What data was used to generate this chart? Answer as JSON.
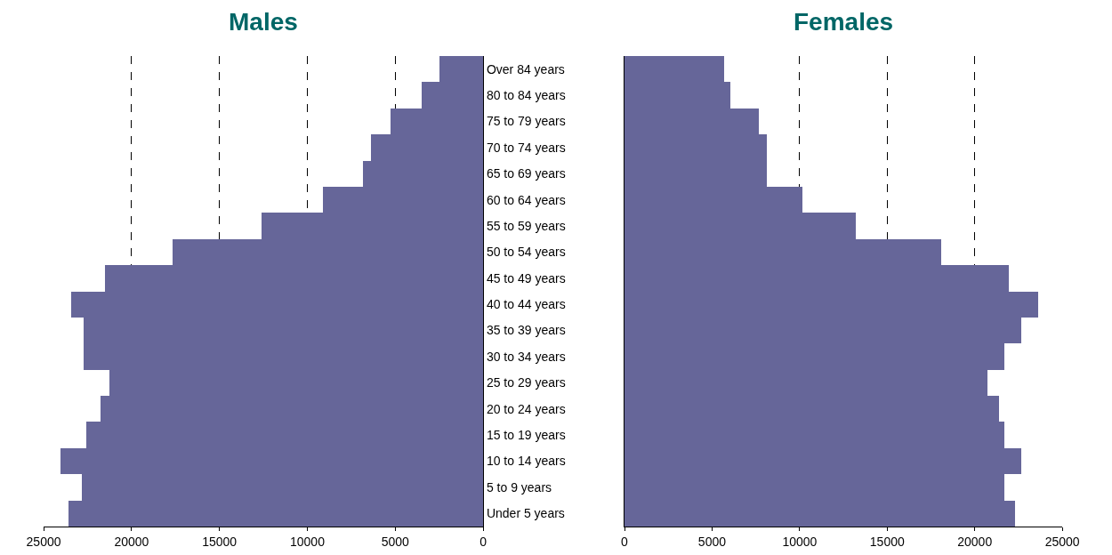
{
  "chart_data": [
    {
      "type": "bar",
      "orientation": "horizontal",
      "title": "Males",
      "categories": [
        "Over 84 years",
        "80 to 84 years",
        "75 to 79 years",
        "70 to 74 years",
        "65 to 69 years",
        "60 to 64 years",
        "55 to 59 years",
        "50 to 54 years",
        "45 to 49 years",
        "40 to 44 years",
        "35 to 39 years",
        "30 to 34 years",
        "25 to 29 years",
        "20 to 24 years",
        "15 to 19 years",
        "10 to 14 years",
        "5 to 9 years",
        "Under 5 years"
      ],
      "values": [
        2500,
        3500,
        5250,
        6400,
        6850,
        9100,
        12600,
        17650,
        21500,
        23450,
        22700,
        22700,
        21250,
        21750,
        22550,
        24050,
        22800,
        23600
      ],
      "color": "#666699",
      "xlim": [
        25000,
        0
      ],
      "xticks": [
        25000,
        20000,
        15000,
        10000,
        5000,
        0
      ],
      "grid": "x"
    },
    {
      "type": "bar",
      "orientation": "horizontal",
      "title": "Females",
      "categories": [
        null,
        null,
        null,
        null,
        null,
        null,
        null,
        null,
        null,
        null,
        null,
        null,
        null,
        null,
        null,
        null,
        null,
        null
      ],
      "values": [
        5700,
        6050,
        7650,
        8150,
        8150,
        10150,
        13200,
        18100,
        21950,
        23600,
        22650,
        21700,
        20750,
        21400,
        21700,
        22650,
        21700,
        22300
      ],
      "color": "#666699",
      "xlim": [
        0,
        25000
      ],
      "xticks": [
        0,
        5000,
        10000,
        15000,
        20000,
        25000
      ],
      "grid": "x",
      "tick_labels": "x"
    }
  ]
}
